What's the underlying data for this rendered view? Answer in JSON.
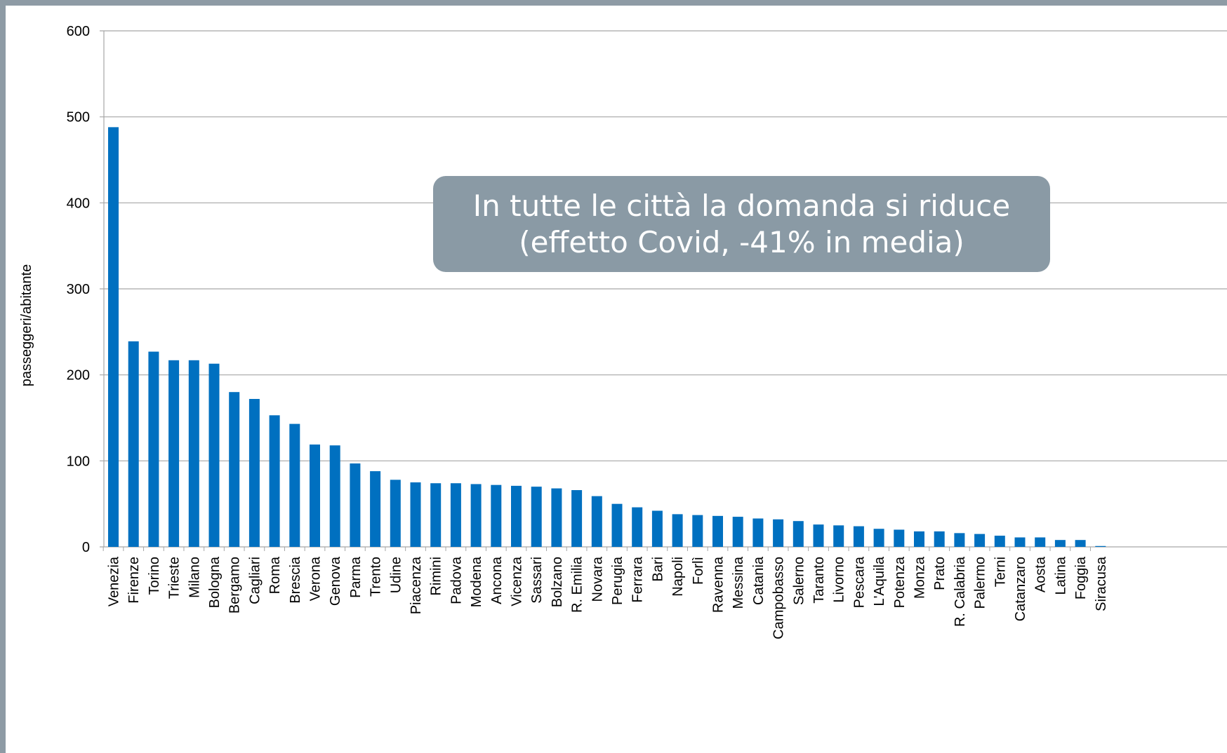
{
  "colors": {
    "frame": "#8e9ba5",
    "bar": "#0070c0",
    "gridline": "#a6a6a6",
    "callout_bg": "#8a9aa5",
    "callout_text": "#ffffff"
  },
  "callout": {
    "line1": "In tutte le città la domanda si riduce",
    "line2": "(effetto Covid, -41% in media)"
  },
  "chart_data": {
    "type": "bar",
    "title": "",
    "xlabel": "",
    "ylabel": "passeggeri/abitante",
    "ylim": [
      0,
      600
    ],
    "yticks": [
      0,
      100,
      200,
      300,
      400,
      500,
      600
    ],
    "grid": true,
    "legend": "none",
    "categories": [
      "Venezia",
      "Firenze",
      "Torino",
      "Trieste",
      "Milano",
      "Bologna",
      "Bergamo",
      "Cagliari",
      "Roma",
      "Brescia",
      "Verona",
      "Genova",
      "Parma",
      "Trento",
      "Udine",
      "Piacenza",
      "Rimini",
      "Padova",
      "Modena",
      "Ancona",
      "Vicenza",
      "Sassari",
      "Bolzano",
      "R. Emilia",
      "Novara",
      "Perugia",
      "Ferrara",
      "Bari",
      "Napoli",
      "Forlì",
      "Ravenna",
      "Messina",
      "Catania",
      "Campobasso",
      "Salerno",
      "Taranto",
      "Livorno",
      "Pescara",
      "L'Aquila",
      "Potenza",
      "Monza",
      "Prato",
      "R. Calabria",
      "Palermo",
      "Terni",
      "Catanzaro",
      "Aosta",
      "Latina",
      "Foggia",
      "Siracusa"
    ],
    "values": [
      488,
      239,
      227,
      217,
      217,
      213,
      180,
      172,
      153,
      143,
      119,
      118,
      97,
      88,
      78,
      75,
      74,
      74,
      73,
      72,
      71,
      70,
      68,
      66,
      59,
      50,
      46,
      42,
      38,
      37,
      36,
      35,
      33,
      32,
      30,
      26,
      25,
      24,
      21,
      20,
      18,
      18,
      16,
      15,
      13,
      11,
      11,
      8,
      8,
      1
    ]
  }
}
